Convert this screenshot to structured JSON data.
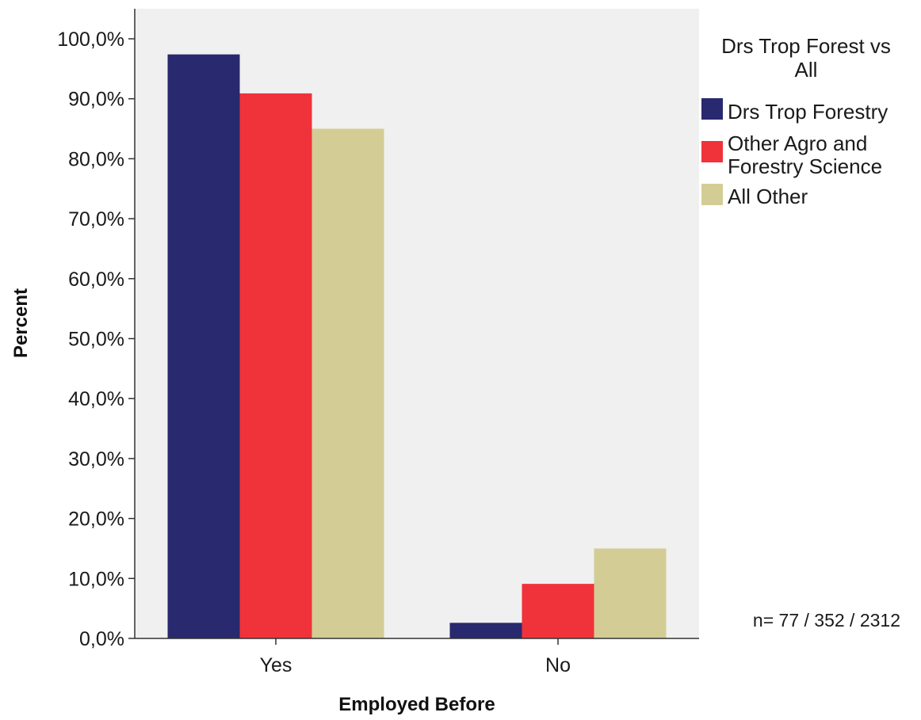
{
  "chart_data": {
    "type": "bar",
    "title": "",
    "xlabel": "Employed Before",
    "ylabel": "Percent",
    "categories": [
      "Yes",
      "No"
    ],
    "ylim": [
      0,
      105
    ],
    "yticks": [
      0,
      10,
      20,
      30,
      40,
      50,
      60,
      70,
      80,
      90,
      100
    ],
    "ytick_labels": [
      "0,0%",
      "10,0%",
      "20,0%",
      "30,0%",
      "40,0%",
      "50,0%",
      "60,0%",
      "70,0%",
      "80,0%",
      "90,0%",
      "100,0%"
    ],
    "series": [
      {
        "name": "Drs Trop Forestry",
        "color": "#29296f",
        "values": [
          97.4,
          2.6
        ]
      },
      {
        "name": "Other Agro and Forestry Science",
        "color": "#f0323a",
        "values": [
          90.9,
          9.1
        ]
      },
      {
        "name": "All Other",
        "color": "#d3cd95",
        "values": [
          85.0,
          15.0
        ]
      }
    ],
    "legend": {
      "title": "Drs Trop Forest vs All",
      "position": "right"
    },
    "annotation": "n= 77 / 352 / 2312",
    "plot_background": "#f0f0f0",
    "grid": false
  }
}
